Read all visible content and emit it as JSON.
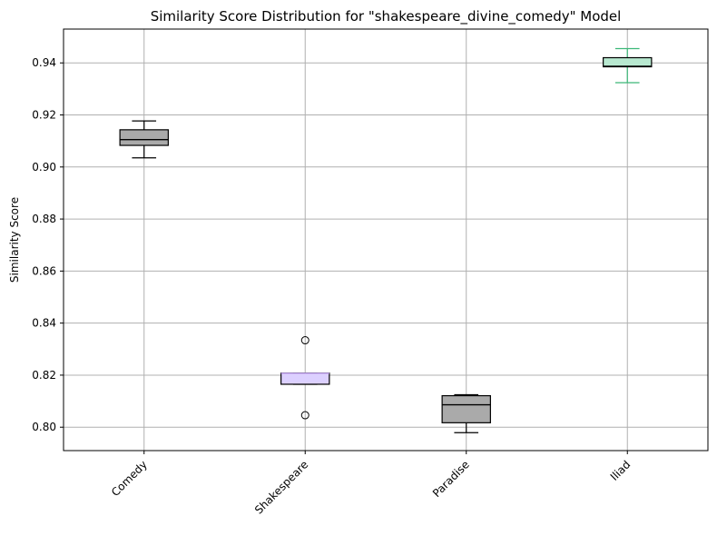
{
  "chart_data": {
    "type": "box",
    "title": "Similarity Score Distribution for \"shakespeare_divine_comedy\" Model",
    "ylabel": "Similarity Score",
    "xlabel": "",
    "ylim": [
      0.791,
      0.953
    ],
    "yticks": [
      0.8,
      0.82,
      0.84,
      0.86,
      0.88,
      0.9,
      0.92,
      0.94
    ],
    "grid": true,
    "categories": [
      "Comedy",
      "Shakespeare",
      "Paradise",
      "Iliad"
    ],
    "boxes": [
      {
        "label": "Comedy",
        "whislo": 0.9035,
        "q1": 0.9083,
        "med": 0.9105,
        "q3": 0.9143,
        "whishi": 0.9177,
        "fliers": [],
        "fill": "#aaaaaa",
        "edge": "#000000",
        "median_color": "#000000",
        "whisker_color": "#000000"
      },
      {
        "label": "Shakespeare",
        "whislo": 0.8165,
        "q1": 0.8165,
        "med": 0.8207,
        "q3": 0.8208,
        "whishi": 0.8208,
        "fliers": [
          0.8334,
          0.8046
        ],
        "fill": "#dcd0ff",
        "edge": "#000000",
        "median_color": "#c8a8f8",
        "whisker_color": "#000000"
      },
      {
        "label": "Paradise",
        "whislo": 0.7979,
        "q1": 0.8017,
        "med": 0.8086,
        "q3": 0.8121,
        "whishi": 0.8125,
        "fliers": [],
        "fill": "#aaaaaa",
        "edge": "#000000",
        "median_color": "#000000",
        "whisker_color": "#000000"
      },
      {
        "label": "Iliad",
        "whislo": 0.9324,
        "q1": 0.9385,
        "med": 0.9387,
        "q3": 0.942,
        "whishi": 0.9455,
        "fliers": [],
        "fill": "#b8e8d0",
        "edge": "#000000",
        "median_color": "#000000",
        "whisker_color": "#3cb878"
      }
    ]
  }
}
